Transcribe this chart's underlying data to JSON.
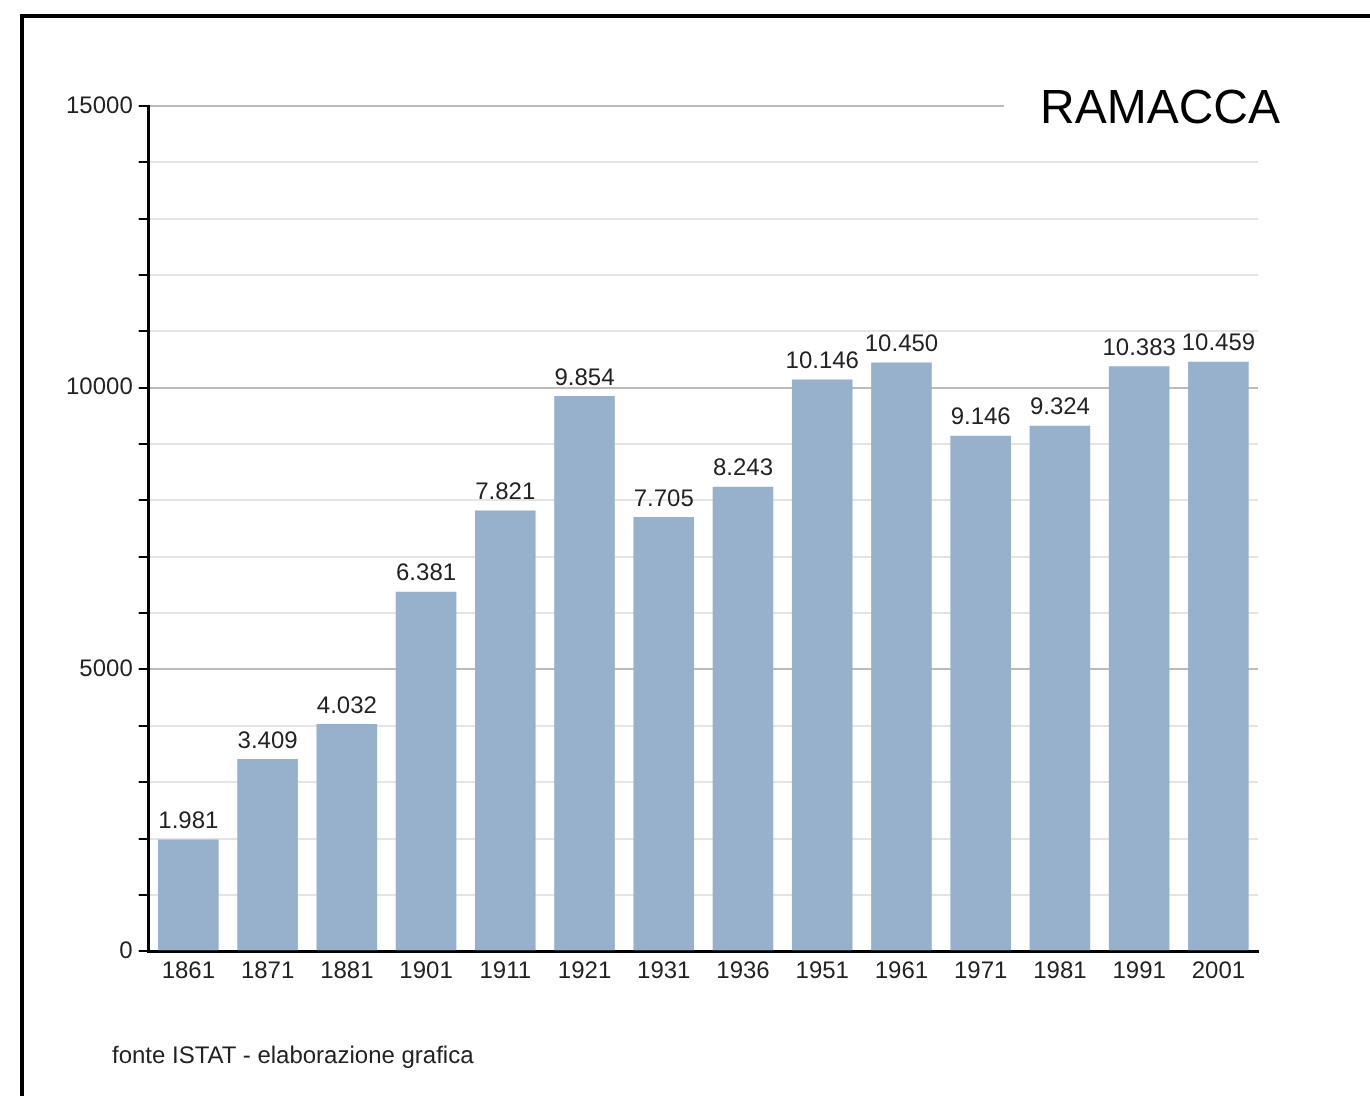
{
  "chart_data": {
    "type": "bar",
    "title": "RAMACCA",
    "categories": [
      "1861",
      "1871",
      "1881",
      "1901",
      "1911",
      "1921",
      "1931",
      "1936",
      "1951",
      "1961",
      "1971",
      "1981",
      "1991",
      "2001"
    ],
    "values": [
      1981,
      3409,
      4032,
      6381,
      7821,
      9854,
      7705,
      8243,
      10146,
      10450,
      9146,
      9324,
      10383,
      10459
    ],
    "value_labels": [
      "1.981",
      "3.409",
      "4.032",
      "6.381",
      "7.821",
      "9.854",
      "7.705",
      "8.243",
      "10.146",
      "10.450",
      "9.146",
      "9.324",
      "10.383",
      "10.459"
    ],
    "color": "#97b0cc",
    "ylim": [
      0,
      15000
    ],
    "yticks": [
      0,
      {
        "value": 1000,
        "label": null
      },
      {
        "value": 2000,
        "label": null
      },
      {
        "value": 3000,
        "label": null
      },
      {
        "value": 4000,
        "label": null
      },
      5000,
      {
        "value": 6000,
        "label": null
      },
      {
        "value": 7000,
        "label": null
      },
      {
        "value": 8000,
        "label": null
      },
      {
        "value": 9000,
        "label": null
      },
      10000,
      {
        "value": 11000,
        "label": null
      },
      {
        "value": 12000,
        "label": null
      },
      {
        "value": 13000,
        "label": null
      },
      {
        "value": 14000,
        "label": null
      },
      15000
    ],
    "grid": "y",
    "legend": false,
    "annotations": [
      "fonte ISTAT - elaborazione grafica"
    ]
  }
}
